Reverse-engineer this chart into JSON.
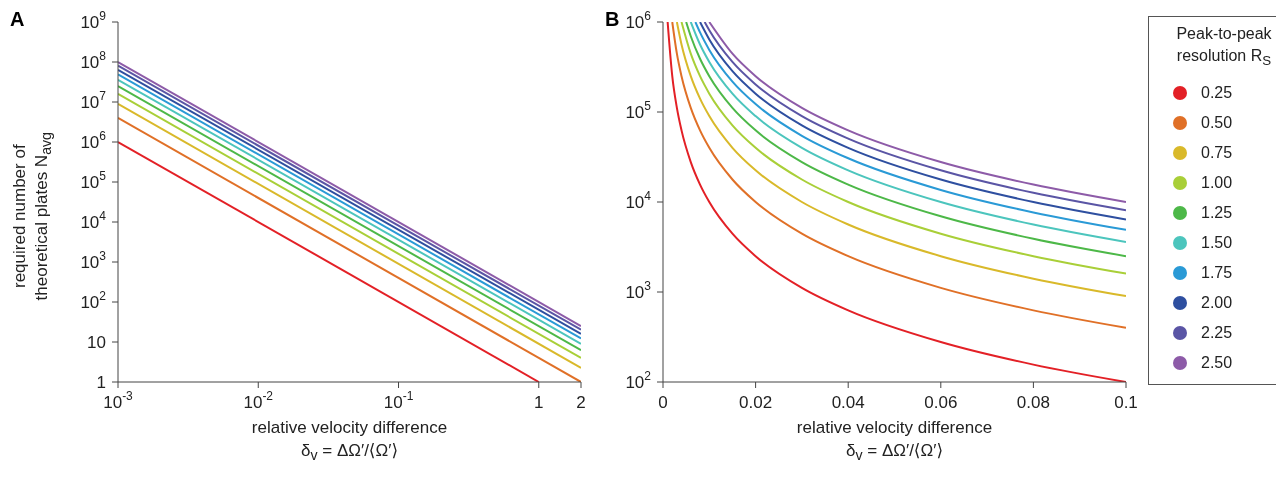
{
  "chart_data": [
    {
      "type": "line",
      "title": "A",
      "xlabel": "relative velocity difference\nδ$_{v}$ = ΔΩ′/⟨Ω′⟩",
      "ylabel": "required number of\ntheoretical plates N$_{avg}$",
      "log": "xy",
      "xlim": [
        0.001,
        2
      ],
      "xticks": [
        {
          "value": 0.001,
          "label": "10$^{-3}$"
        },
        {
          "value": 0.01,
          "label": "10$^{-2}$"
        },
        {
          "value": 0.1,
          "label": "10$^{-1}$"
        },
        1,
        2
      ],
      "ylim": [
        1,
        1000000000
      ],
      "yticks": [
        1,
        10,
        {
          "value": 100,
          "label": "10$^{2}$"
        },
        {
          "value": 1000,
          "label": "10$^{3}$"
        },
        {
          "value": 10000,
          "label": "10$^{4}$"
        },
        {
          "value": 100000,
          "label": "10$^{5}$"
        },
        {
          "value": 1000000,
          "label": "10$^{6}$"
        },
        {
          "value": 10000000,
          "label": "10$^{7}$"
        },
        {
          "value": 100000000,
          "label": "10$^{8}$"
        },
        {
          "value": 1000000000,
          "label": "10$^{9}$"
        }
      ],
      "series": [
        {
          "color": "#e32026",
          "x": [
            0.001,
            1
          ],
          "values": [
            1000000,
            1
          ]
        },
        {
          "color": "#e07027",
          "x": [
            0.001,
            2
          ],
          "values": [
            4000000,
            1
          ]
        },
        {
          "color": "#d9b92a",
          "x": [
            0.001,
            2
          ],
          "values": [
            9000000,
            2.25
          ]
        },
        {
          "color": "#a9cf38",
          "x": [
            0.001,
            2
          ],
          "values": [
            16000000,
            4
          ]
        },
        {
          "color": "#4db848",
          "x": [
            0.001,
            2
          ],
          "values": [
            25000000,
            6.25
          ]
        },
        {
          "color": "#4cc5bd",
          "x": [
            0.001,
            2
          ],
          "values": [
            36000000,
            9
          ]
        },
        {
          "color": "#2a9ad6",
          "x": [
            0.001,
            2
          ],
          "values": [
            49000000,
            12.25
          ]
        },
        {
          "color": "#2e4fa0",
          "x": [
            0.001,
            2
          ],
          "values": [
            64000000,
            16
          ]
        },
        {
          "color": "#5a55a5",
          "x": [
            0.001,
            2
          ],
          "values": [
            81000000,
            20.25
          ]
        },
        {
          "color": "#8d5ba8",
          "x": [
            0.001,
            2
          ],
          "values": [
            100000000,
            25
          ]
        }
      ]
    },
    {
      "type": "line",
      "title": "B",
      "xlabel": "relative velocity difference\nδ$_{v}$ = ΔΩ′/⟨Ω′⟩",
      "log": "y",
      "xlim": [
        0,
        0.1
      ],
      "xticks": [
        0,
        0.02,
        0.04,
        0.06,
        0.08,
        0.1
      ],
      "ylim": [
        100,
        1000000
      ],
      "yticks": [
        {
          "value": 100,
          "label": "10$^{2}$"
        },
        {
          "value": 1000,
          "label": "10$^{3}$"
        },
        {
          "value": 10000,
          "label": "10$^{4}$"
        },
        {
          "value": 100000,
          "label": "10$^{5}$"
        },
        {
          "value": 1000000,
          "label": "10$^{6}$"
        }
      ],
      "legend": "right",
      "legend_title": "Peak-to-peak\nresolution R$_{S}$",
      "series": [
        {
          "name": "0.25",
          "color": "#e32026",
          "x": [
            0.001,
            0.002,
            0.003,
            0.004,
            0.006,
            0.008,
            0.01,
            0.015,
            0.02,
            0.03,
            0.04,
            0.06,
            0.08,
            0.1
          ],
          "values": [
            1000000,
            250000,
            111111,
            62500,
            27778,
            15625,
            10000,
            4444,
            2500,
            1111,
            625,
            278,
            156,
            100
          ]
        },
        {
          "name": "0.50",
          "color": "#e07027",
          "x": [
            0.002,
            0.003,
            0.004,
            0.006,
            0.008,
            0.01,
            0.015,
            0.02,
            0.03,
            0.04,
            0.06,
            0.08,
            0.1
          ],
          "values": [
            1000000,
            444444,
            250000,
            111111,
            62500,
            40000,
            17778,
            10000,
            4444,
            2500,
            1111,
            625,
            400
          ]
        },
        {
          "name": "0.75",
          "color": "#d9b92a",
          "x": [
            0.003,
            0.004,
            0.006,
            0.008,
            0.01,
            0.015,
            0.02,
            0.03,
            0.04,
            0.06,
            0.08,
            0.1
          ],
          "values": [
            1000000,
            562500,
            250000,
            140625,
            90000,
            40000,
            22500,
            10000,
            5625,
            2500,
            1406,
            900
          ]
        },
        {
          "name": "1.00",
          "color": "#a9cf38",
          "x": [
            0.004,
            0.006,
            0.008,
            0.01,
            0.015,
            0.02,
            0.03,
            0.04,
            0.06,
            0.08,
            0.1
          ],
          "values": [
            1000000,
            444444,
            250000,
            160000,
            71111,
            40000,
            17778,
            10000,
            4444,
            2500,
            1600
          ]
        },
        {
          "name": "1.25",
          "color": "#4db848",
          "x": [
            0.005,
            0.006,
            0.008,
            0.01,
            0.015,
            0.02,
            0.03,
            0.04,
            0.06,
            0.08,
            0.1
          ],
          "values": [
            1000000,
            694444,
            390625,
            250000,
            111111,
            62500,
            27778,
            15625,
            6944,
            3906,
            2500
          ]
        },
        {
          "name": "1.50",
          "color": "#4cc5bd",
          "x": [
            0.006,
            0.008,
            0.01,
            0.015,
            0.02,
            0.03,
            0.04,
            0.06,
            0.08,
            0.1
          ],
          "values": [
            1000000,
            562500,
            360000,
            160000,
            90000,
            40000,
            22500,
            10000,
            5625,
            3600
          ]
        },
        {
          "name": "1.75",
          "color": "#2a9ad6",
          "x": [
            0.007,
            0.008,
            0.01,
            0.015,
            0.02,
            0.03,
            0.04,
            0.06,
            0.08,
            0.1
          ],
          "values": [
            1000000,
            765625,
            490000,
            217778,
            122500,
            54444,
            30625,
            13611,
            7656,
            4900
          ]
        },
        {
          "name": "2.00",
          "color": "#2e4fa0",
          "x": [
            0.008,
            0.01,
            0.015,
            0.02,
            0.03,
            0.04,
            0.06,
            0.08,
            0.1
          ],
          "values": [
            1000000,
            640000,
            284444,
            160000,
            71111,
            40000,
            17778,
            10000,
            6400
          ]
        },
        {
          "name": "2.25",
          "color": "#5a55a5",
          "x": [
            0.009,
            0.01,
            0.015,
            0.02,
            0.03,
            0.04,
            0.06,
            0.08,
            0.1
          ],
          "values": [
            1000000,
            810000,
            360000,
            202500,
            90000,
            50625,
            22500,
            12656,
            8100
          ]
        },
        {
          "name": "2.50",
          "color": "#8d5ba8",
          "x": [
            0.01,
            0.015,
            0.02,
            0.03,
            0.04,
            0.06,
            0.08,
            0.1
          ],
          "values": [
            1000000,
            444444,
            250000,
            111111,
            62500,
            27778,
            15625,
            10000
          ]
        }
      ]
    }
  ]
}
